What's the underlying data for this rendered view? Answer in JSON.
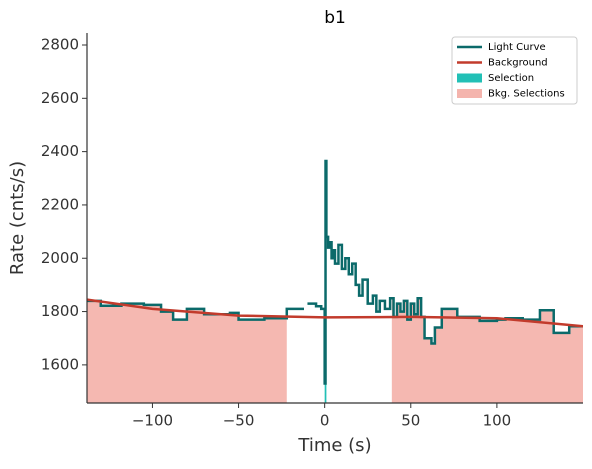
{
  "chart_data": {
    "type": "step",
    "title": "b1",
    "x_label": "Time (s)",
    "y_label": "Rate (cnts/s)",
    "xlim": [
      -138,
      150
    ],
    "ylim": [
      1457,
      2845
    ],
    "xticks": [
      {
        "value": -100,
        "label": "−100"
      },
      {
        "value": -50,
        "label": "−50"
      },
      0,
      50,
      100
    ],
    "yticks": [
      1600,
      1800,
      2000,
      2200,
      2400,
      2600,
      2800
    ],
    "legend": "upper right",
    "series": [
      {
        "name": "Light Curve",
        "color": "#0b6a6a",
        "bins": [
          -138,
          -130,
          -118,
          -105,
          -95,
          -88,
          -80,
          -70,
          -55,
          -50,
          -35,
          -22,
          -12,
          -10,
          -5,
          -2,
          0,
          0.5,
          1,
          2,
          3,
          4,
          5,
          6,
          8,
          10,
          12,
          14,
          16,
          18,
          20,
          22,
          25,
          28,
          30,
          32,
          35,
          38,
          40,
          42,
          44,
          46,
          48,
          50,
          52,
          54,
          56,
          58,
          62,
          64,
          68,
          77,
          90,
          100,
          105,
          115,
          125,
          133,
          142,
          150
        ],
        "values": [
          1840,
          1822,
          1830,
          1825,
          1800,
          1770,
          1810,
          1790,
          1795,
          1770,
          1775,
          1810,
          null,
          1830,
          1820,
          1810,
          1530,
          2365,
          2080,
          2040,
          2060,
          2000,
          2030,
          1980,
          2050,
          1960,
          2000,
          1940,
          1980,
          1900,
          1860,
          1920,
          1830,
          1860,
          1800,
          1840,
          1810,
          1850,
          1780,
          1830,
          1800,
          1840,
          1770,
          1830,
          1790,
          1850,
          1780,
          1700,
          1680,
          1740,
          1810,
          1780,
          1765,
          1770,
          1775,
          1770,
          1805,
          1720,
          1745
        ]
      },
      {
        "name": "Background",
        "color": "#c23b2c",
        "x": [
          -138,
          -100,
          -50,
          0,
          50,
          100,
          150
        ],
        "values": [
          1845,
          1810,
          1785,
          1778,
          1780,
          1775,
          1745
        ]
      }
    ],
    "selection": {
      "name": "Selection",
      "color": "#22c0b6",
      "intervals": [
        [
          0,
          1
        ]
      ]
    },
    "bkg_selections": {
      "name": "Bkg. Selections",
      "color": "#f4b4ad",
      "intervals": [
        [
          -138,
          -22
        ],
        [
          39,
          150
        ]
      ]
    }
  }
}
